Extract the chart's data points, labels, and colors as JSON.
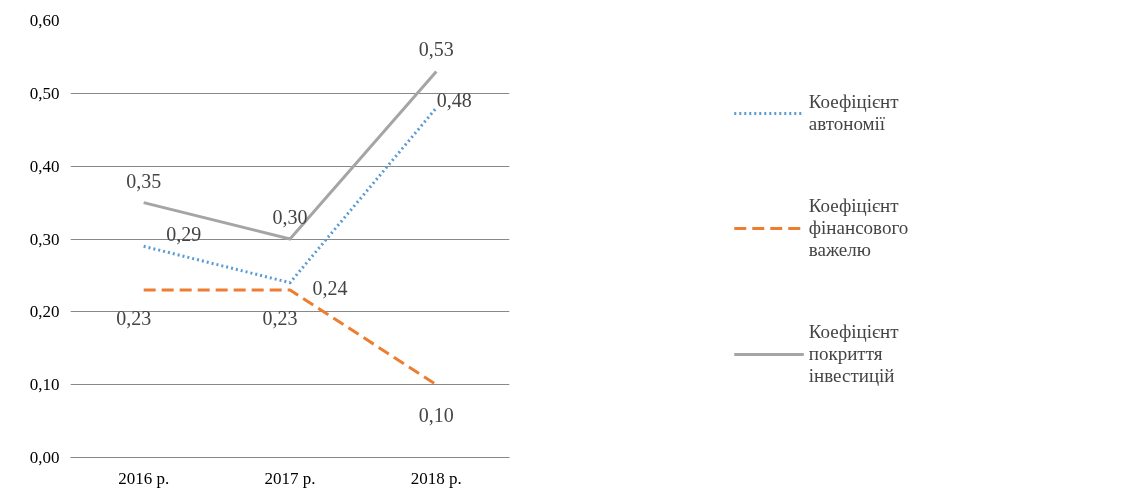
{
  "chart_data": {
    "type": "line",
    "categories": [
      "2016 р.",
      "2017 р.",
      "2018 р."
    ],
    "series": [
      {
        "name": "Коефіцієнт\nавтономії",
        "color": "#5b9bd5",
        "line_style": "dotted",
        "values": [
          0.29,
          0.24,
          0.48
        ],
        "value_labels": [
          "0,29",
          "0,24",
          "0,48"
        ]
      },
      {
        "name": "Коефіцієнт\nфінансового\nважелю",
        "color": "#ed7d31",
        "line_style": "dashed",
        "values": [
          0.23,
          0.23,
          0.1
        ],
        "value_labels": [
          "0,23",
          "0,23",
          "0,10"
        ]
      },
      {
        "name": "Коефіцієнт\nпокриття\nінвестицій",
        "color": "#a5a5a5",
        "line_style": "solid",
        "values": [
          0.35,
          0.3,
          0.53
        ],
        "value_labels": [
          "0,35",
          "0,30",
          "0,53"
        ]
      }
    ],
    "ylim": [
      0,
      0.6
    ],
    "yticks": [
      {
        "value": 0,
        "label": "0,00"
      },
      {
        "value": 0.1,
        "label": "0,10"
      },
      {
        "value": 0.2,
        "label": "0,20"
      },
      {
        "value": 0.3,
        "label": "0,30"
      },
      {
        "value": 0.4,
        "label": "0,40"
      },
      {
        "value": 0.5,
        "label": "0,50"
      },
      {
        "value": 0.6,
        "label": "0,60"
      }
    ],
    "grid": "y",
    "legend": "right",
    "marker": "none"
  }
}
